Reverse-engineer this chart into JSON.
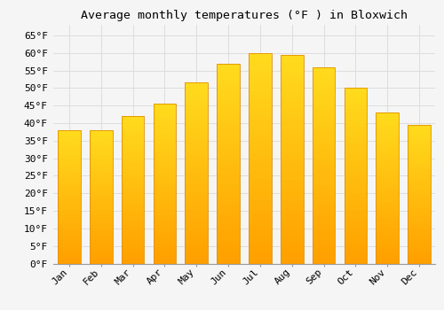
{
  "title": "Average monthly temperatures (°F ) in Bloxwich",
  "months": [
    "Jan",
    "Feb",
    "Mar",
    "Apr",
    "May",
    "Jun",
    "Jul",
    "Aug",
    "Sep",
    "Oct",
    "Nov",
    "Dec"
  ],
  "values": [
    38,
    38,
    42,
    45.5,
    51.5,
    57,
    60,
    59.5,
    56,
    50,
    43,
    39.5
  ],
  "bar_color_top": "#FFC020",
  "bar_color_bottom": "#FFB000",
  "bar_edge_color": "#E09000",
  "background_color": "#F5F5F5",
  "grid_color": "#DDDDDD",
  "ylim": [
    0,
    68
  ],
  "yticks": [
    0,
    5,
    10,
    15,
    20,
    25,
    30,
    35,
    40,
    45,
    50,
    55,
    60,
    65
  ],
  "title_fontsize": 9.5,
  "tick_fontsize": 8,
  "font_family": "monospace"
}
